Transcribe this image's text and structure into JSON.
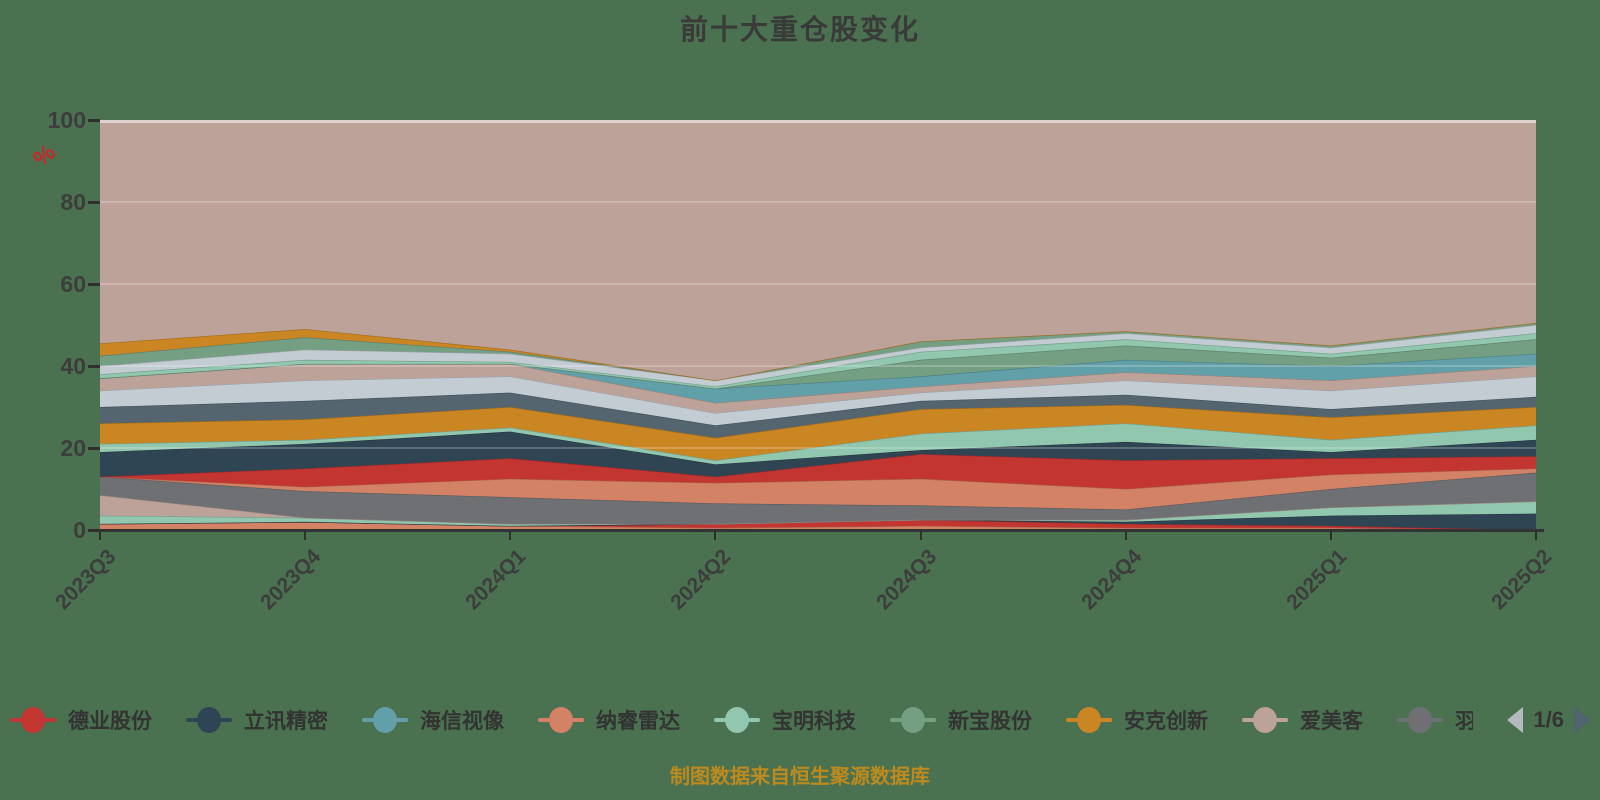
{
  "title": "前十大重仓股变化",
  "footer": "制图数据来自恒生聚源数据库",
  "colors": {
    "background": "#4a7250",
    "title_text": "#3a3a3a",
    "axis_text": "#3d3d3d",
    "axis_line": "#333333",
    "percent_mark": "#c62828",
    "footer_text": "#bd8a1e",
    "grid_line": "rgba(255,255,255,0.35)",
    "pager_prev": "#b5babe",
    "pager_next": "#4f6370",
    "filler_area": "#bda29a"
  },
  "y_axis": {
    "unit": "%",
    "ticks": [
      "100",
      "80",
      "60",
      "40",
      "20",
      "0"
    ]
  },
  "legend": {
    "items": [
      {
        "label": "德业股份",
        "color": "#c23531"
      },
      {
        "label": "立讯精密",
        "color": "#2f4554"
      },
      {
        "label": "海信视像",
        "color": "#61a0a8"
      },
      {
        "label": "纳睿雷达",
        "color": "#d48265"
      },
      {
        "label": "宝明科技",
        "color": "#91c7ae"
      },
      {
        "label": "新宝股份",
        "color": "#749f83"
      },
      {
        "label": "安克创新",
        "color": "#ca8622"
      },
      {
        "label": "爱美客",
        "color": "#bda29a"
      },
      {
        "label": "羽",
        "color": "#6e7074",
        "truncated": true
      }
    ],
    "pagination": {
      "current": "1/6"
    }
  },
  "chart_data": {
    "type": "area",
    "stacked": true,
    "unit": "%",
    "ylim": [
      0,
      100
    ],
    "grid": true,
    "legend_position": "bottom",
    "categories": [
      "2023Q3",
      "2023Q4",
      "2024Q1",
      "2024Q2",
      "2024Q3",
      "2024Q4",
      "2025Q1",
      "2025Q2"
    ],
    "series": [
      {
        "name": "",
        "color": "#d48265",
        "values": [
          1.5,
          2,
          1,
          0.5,
          1,
          0.5,
          0.5,
          0
        ]
      },
      {
        "name": "",
        "color": "#c23531",
        "values": [
          0,
          0,
          0,
          1,
          1.5,
          1,
          0.5,
          0
        ]
      },
      {
        "name": "",
        "color": "#2f4554",
        "values": [
          0,
          0,
          0,
          0,
          0,
          0.5,
          2.5,
          4
        ]
      },
      {
        "name": "",
        "color": "#91c7ae",
        "values": [
          2,
          1,
          0.5,
          0,
          0,
          0.5,
          2,
          3
        ]
      },
      {
        "name": "",
        "color": "#bda29a",
        "values": [
          5,
          0,
          0,
          0,
          0,
          0,
          0,
          0
        ]
      },
      {
        "name": "羽",
        "color": "#6e7074",
        "values": [
          4.5,
          6.5,
          6.5,
          5,
          3.5,
          2.5,
          4.5,
          7
        ]
      },
      {
        "name": "纳睿雷达",
        "color": "#d48265",
        "values": [
          0,
          1,
          4.5,
          5,
          6.5,
          5,
          3.5,
          1
        ]
      },
      {
        "name": "德业股份",
        "color": "#c23531",
        "values": [
          0,
          4.5,
          5,
          1.5,
          6,
          7,
          4,
          3
        ]
      },
      {
        "name": "立讯精密",
        "color": "#2f4554",
        "values": [
          6,
          6,
          6.5,
          3,
          1,
          4.5,
          1.5,
          4
        ]
      },
      {
        "name": "宝明科技",
        "color": "#91c7ae",
        "values": [
          2,
          1,
          1,
          1,
          4,
          4.5,
          3,
          3.5
        ]
      },
      {
        "name": "安克创新",
        "color": "#ca8622",
        "values": [
          5,
          5,
          5,
          5.5,
          6,
          4.5,
          5.5,
          4.5
        ]
      },
      {
        "name": "",
        "color": "#546570",
        "values": [
          4,
          4.5,
          3.5,
          3,
          2,
          2.5,
          2,
          2.5
        ]
      },
      {
        "name": "",
        "color": "#c4ccd3",
        "values": [
          4,
          5,
          4,
          3,
          2,
          3.5,
          4.5,
          5
        ]
      },
      {
        "name": "爱美客",
        "color": "#bda29a",
        "values": [
          3,
          4,
          3,
          2.5,
          1.5,
          2,
          2.5,
          2.5
        ]
      },
      {
        "name": "海信视像",
        "color": "#61a0a8",
        "values": [
          0,
          0,
          0,
          3.5,
          2.5,
          3,
          3.5,
          3
        ]
      },
      {
        "name": "新宝股份",
        "color": "#749f83",
        "values": [
          0,
          0,
          0,
          0,
          4,
          3.5,
          2,
          3.5
        ]
      },
      {
        "name": "",
        "color": "#91c7ae",
        "values": [
          1,
          1,
          0.5,
          0.5,
          2,
          1.5,
          1,
          1.5
        ]
      },
      {
        "name": "",
        "color": "#c4ccd3",
        "values": [
          2,
          2.5,
          2,
          1.5,
          1,
          1.5,
          1.5,
          2
        ]
      },
      {
        "name": "",
        "color": "#749f83",
        "values": [
          2.5,
          3,
          0.5,
          0,
          1.5,
          0.5,
          0.5,
          0.5
        ]
      },
      {
        "name": "",
        "color": "#ca8622",
        "values": [
          3,
          2,
          0.5,
          0,
          0,
          0,
          0,
          0
        ]
      }
    ],
    "filler": {
      "name": "",
      "color": "#bda29a"
    }
  }
}
